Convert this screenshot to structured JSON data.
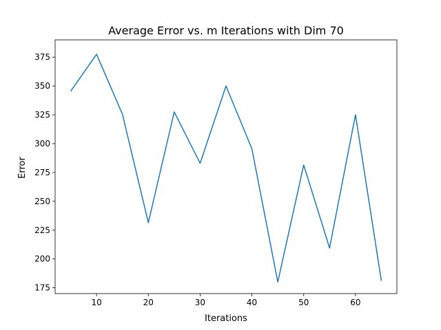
{
  "chart_data": {
    "type": "line",
    "title": "Average Error vs. m Iterations with Dim 70",
    "xlabel": "Iterations",
    "ylabel": "Error",
    "xlim": [
      2,
      68
    ],
    "ylim": [
      170,
      390
    ],
    "xticks": [
      10,
      20,
      30,
      40,
      50,
      60
    ],
    "yticks": [
      175,
      200,
      225,
      250,
      275,
      300,
      325,
      350,
      375
    ],
    "grid": false,
    "series": [
      {
        "color": "#1f77b4",
        "x": [
          5,
          10,
          15,
          20,
          25,
          30,
          35,
          40,
          45,
          50,
          55,
          60,
          65
        ],
        "y": [
          345.5,
          377.5,
          325.5,
          231.5,
          327.5,
          283,
          350,
          295.5,
          180,
          281.5,
          209.5,
          325,
          181
        ]
      }
    ]
  }
}
